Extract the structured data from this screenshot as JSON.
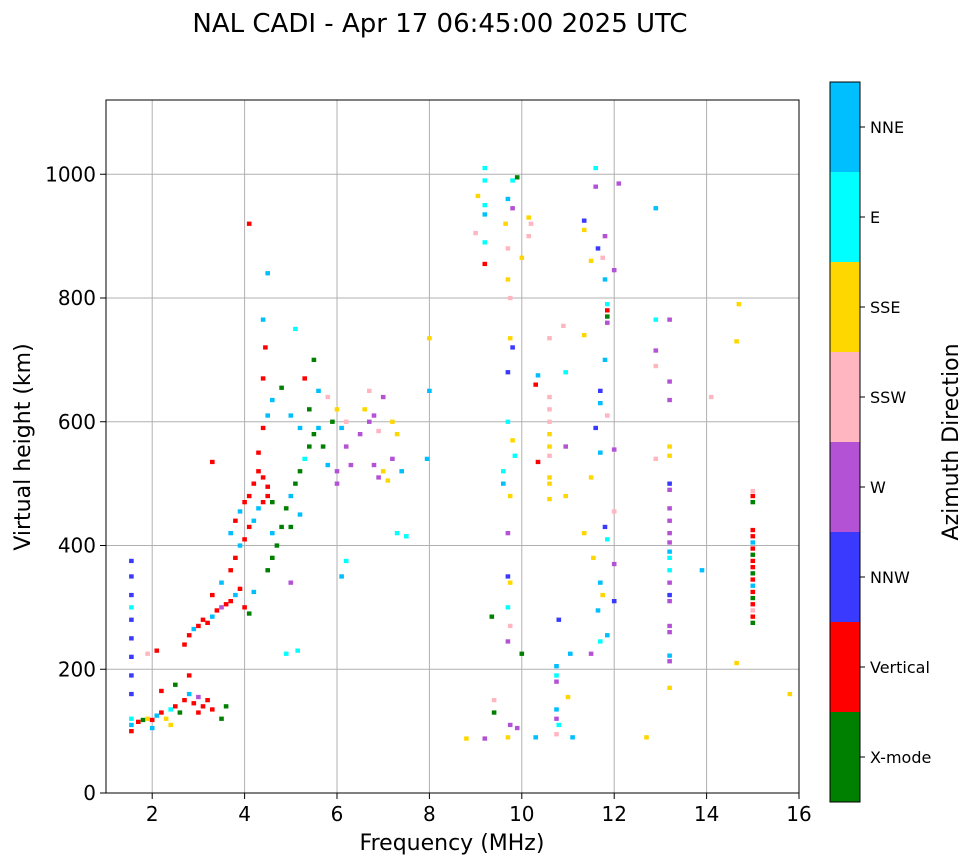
{
  "chart_data": {
    "type": "scatter",
    "title": "NAL CADI - Apr 17 06:45:00 2025 UTC",
    "xlabel": "Frequency (MHz)",
    "ylabel": "Virtual height (km)",
    "xlim": [
      1,
      16
    ],
    "ylim": [
      0,
      1120
    ],
    "xticks": [
      2,
      4,
      6,
      8,
      10,
      12,
      14,
      16
    ],
    "yticks": [
      0,
      200,
      400,
      600,
      800,
      1000
    ],
    "grid": true,
    "colorbar": {
      "label": "Azimuth Direction",
      "categories": [
        {
          "name": "X-mode",
          "color": "#008000"
        },
        {
          "name": "Vertical",
          "color": "#ff0000"
        },
        {
          "name": "NNW",
          "color": "#3a3aff"
        },
        {
          "name": "W",
          "color": "#b452d6"
        },
        {
          "name": "SSW",
          "color": "#ffb6c1"
        },
        {
          "name": "SSE",
          "color": "#ffd700"
        },
        {
          "name": "E",
          "color": "#00ffff"
        },
        {
          "name": "NNE",
          "color": "#00bfff"
        }
      ]
    },
    "points": [
      [
        1.55,
        100,
        "Vertical"
      ],
      [
        1.55,
        110,
        "NNE"
      ],
      [
        1.55,
        120,
        "E"
      ],
      [
        1.55,
        160,
        "NNW"
      ],
      [
        1.55,
        190,
        "NNW"
      ],
      [
        1.55,
        220,
        "NNW"
      ],
      [
        1.55,
        250,
        "NNW"
      ],
      [
        1.55,
        280,
        "NNW"
      ],
      [
        1.55,
        300,
        "E"
      ],
      [
        1.55,
        320,
        "NNW"
      ],
      [
        1.55,
        350,
        "NNW"
      ],
      [
        1.55,
        375,
        "NNW"
      ],
      [
        1.7,
        115,
        "Vertical"
      ],
      [
        1.8,
        118,
        "X-mode"
      ],
      [
        1.9,
        120,
        "SSE"
      ],
      [
        2.0,
        118,
        "Vertical"
      ],
      [
        2.1,
        125,
        "NNE"
      ],
      [
        2.2,
        130,
        "Vertical"
      ],
      [
        2.3,
        120,
        "SSE"
      ],
      [
        2.4,
        135,
        "E"
      ],
      [
        2.5,
        140,
        "Vertical"
      ],
      [
        2.6,
        130,
        "X-mode"
      ],
      [
        2.7,
        150,
        "Vertical"
      ],
      [
        2.8,
        160,
        "NNE"
      ],
      [
        2.9,
        145,
        "Vertical"
      ],
      [
        3.0,
        155,
        "W"
      ],
      [
        3.1,
        140,
        "Vertical"
      ],
      [
        3.2,
        150,
        "Vertical"
      ],
      [
        2.2,
        165,
        "Vertical"
      ],
      [
        2.5,
        175,
        "X-mode"
      ],
      [
        2.8,
        190,
        "Vertical"
      ],
      [
        3.0,
        130,
        "Vertical"
      ],
      [
        3.3,
        135,
        "Vertical"
      ],
      [
        3.5,
        120,
        "X-mode"
      ],
      [
        3.6,
        140,
        "X-mode"
      ],
      [
        2.4,
        110,
        "SSE"
      ],
      [
        2.0,
        105,
        "NNE"
      ],
      [
        1.9,
        225,
        "SSW"
      ],
      [
        2.1,
        230,
        "Vertical"
      ],
      [
        2.7,
        240,
        "Vertical"
      ],
      [
        2.8,
        255,
        "Vertical"
      ],
      [
        2.9,
        265,
        "NNE"
      ],
      [
        3.0,
        270,
        "Vertical"
      ],
      [
        3.1,
        280,
        "Vertical"
      ],
      [
        3.2,
        275,
        "Vertical"
      ],
      [
        3.3,
        285,
        "NNE"
      ],
      [
        3.4,
        295,
        "Vertical"
      ],
      [
        3.5,
        300,
        "W"
      ],
      [
        3.6,
        305,
        "Vertical"
      ],
      [
        3.7,
        310,
        "Vertical"
      ],
      [
        3.8,
        320,
        "NNE"
      ],
      [
        3.9,
        330,
        "Vertical"
      ],
      [
        4.0,
        300,
        "Vertical"
      ],
      [
        4.1,
        290,
        "X-mode"
      ],
      [
        4.2,
        325,
        "NNE"
      ],
      [
        3.3,
        320,
        "Vertical"
      ],
      [
        3.5,
        340,
        "NNE"
      ],
      [
        3.7,
        360,
        "Vertical"
      ],
      [
        3.8,
        380,
        "Vertical"
      ],
      [
        3.9,
        400,
        "NNE"
      ],
      [
        4.0,
        410,
        "Vertical"
      ],
      [
        4.1,
        430,
        "Vertical"
      ],
      [
        3.7,
        420,
        "NNE"
      ],
      [
        3.8,
        440,
        "Vertical"
      ],
      [
        3.9,
        455,
        "NNE"
      ],
      [
        4.0,
        470,
        "Vertical"
      ],
      [
        4.1,
        480,
        "Vertical"
      ],
      [
        4.2,
        500,
        "Vertical"
      ],
      [
        4.3,
        520,
        "Vertical"
      ],
      [
        4.4,
        510,
        "Vertical"
      ],
      [
        4.5,
        495,
        "Vertical"
      ],
      [
        4.3,
        460,
        "NNE"
      ],
      [
        4.4,
        470,
        "Vertical"
      ],
      [
        4.5,
        480,
        "Vertical"
      ],
      [
        4.6,
        470,
        "X-mode"
      ],
      [
        4.2,
        440,
        "NNE"
      ],
      [
        4.3,
        550,
        "Vertical"
      ],
      [
        4.4,
        590,
        "Vertical"
      ],
      [
        4.5,
        610,
        "NNE"
      ],
      [
        4.6,
        635,
        "NNE"
      ],
      [
        4.4,
        670,
        "Vertical"
      ],
      [
        4.45,
        720,
        "Vertical"
      ],
      [
        4.4,
        765,
        "NNE"
      ],
      [
        4.5,
        840,
        "NNE"
      ],
      [
        4.1,
        920,
        "Vertical"
      ],
      [
        3.3,
        535,
        "Vertical"
      ],
      [
        4.6,
        380,
        "X-mode"
      ],
      [
        4.7,
        400,
        "X-mode"
      ],
      [
        4.6,
        420,
        "NNE"
      ],
      [
        4.5,
        360,
        "X-mode"
      ],
      [
        4.8,
        430,
        "X-mode"
      ],
      [
        4.9,
        460,
        "X-mode"
      ],
      [
        5.0,
        480,
        "NNE"
      ],
      [
        5.1,
        500,
        "X-mode"
      ],
      [
        5.2,
        520,
        "X-mode"
      ],
      [
        5.3,
        540,
        "E"
      ],
      [
        5.4,
        560,
        "X-mode"
      ],
      [
        5.5,
        580,
        "X-mode"
      ],
      [
        5.6,
        590,
        "NNE"
      ],
      [
        5.7,
        560,
        "X-mode"
      ],
      [
        5.8,
        530,
        "NNE"
      ],
      [
        5.9,
        600,
        "X-mode"
      ],
      [
        5.0,
        430,
        "X-mode"
      ],
      [
        5.2,
        450,
        "NNE"
      ],
      [
        5.4,
        620,
        "X-mode"
      ],
      [
        5.6,
        650,
        "NNE"
      ],
      [
        5.8,
        640,
        "SSW"
      ],
      [
        5.0,
        340,
        "W"
      ],
      [
        4.9,
        225,
        "E"
      ],
      [
        5.15,
        230,
        "E"
      ],
      [
        5.2,
        590,
        "NNE"
      ],
      [
        5.3,
        670,
        "Vertical"
      ],
      [
        5.5,
        700,
        "X-mode"
      ],
      [
        5.1,
        750,
        "E"
      ],
      [
        4.8,
        655,
        "X-mode"
      ],
      [
        5.0,
        610,
        "NNE"
      ],
      [
        6.1,
        590,
        "NNE"
      ],
      [
        6.2,
        560,
        "W"
      ],
      [
        6.3,
        530,
        "W"
      ],
      [
        6.0,
        520,
        "W"
      ],
      [
        6.0,
        500,
        "W"
      ],
      [
        6.2,
        600,
        "SSW"
      ],
      [
        6.5,
        580,
        "W"
      ],
      [
        6.6,
        620,
        "SSE"
      ],
      [
        6.7,
        600,
        "W"
      ],
      [
        6.8,
        610,
        "W"
      ],
      [
        6.9,
        585,
        "SSW"
      ],
      [
        6.8,
        530,
        "W"
      ],
      [
        7.0,
        520,
        "SSE"
      ],
      [
        7.1,
        505,
        "SSE"
      ],
      [
        7.2,
        540,
        "W"
      ],
      [
        7.3,
        580,
        "SSE"
      ],
      [
        7.4,
        520,
        "NNE"
      ],
      [
        6.9,
        510,
        "W"
      ],
      [
        6.7,
        650,
        "SSW"
      ],
      [
        7.0,
        640,
        "W"
      ],
      [
        7.2,
        600,
        "SSE"
      ],
      [
        6.1,
        350,
        "NNE"
      ],
      [
        6.2,
        375,
        "E"
      ],
      [
        7.3,
        420,
        "E"
      ],
      [
        7.5,
        415,
        "E"
      ],
      [
        6.0,
        620,
        "SSE"
      ],
      [
        8.0,
        735,
        "SSE"
      ],
      [
        8.0,
        650,
        "NNE"
      ],
      [
        7.95,
        540,
        "NNE"
      ],
      [
        9.2,
        1010,
        "E"
      ],
      [
        9.2,
        990,
        "E"
      ],
      [
        9.2,
        950,
        "E"
      ],
      [
        9.2,
        935,
        "NNE"
      ],
      [
        9.05,
        965,
        "SSE"
      ],
      [
        9.2,
        890,
        "E"
      ],
      [
        9.0,
        905,
        "SSW"
      ],
      [
        9.2,
        855,
        "Vertical"
      ],
      [
        8.8,
        88,
        "SSE"
      ],
      [
        9.2,
        88,
        "W"
      ],
      [
        9.4,
        150,
        "SSW"
      ],
      [
        9.4,
        130,
        "X-mode"
      ],
      [
        9.35,
        285,
        "X-mode"
      ],
      [
        9.7,
        960,
        "NNE"
      ],
      [
        9.65,
        920,
        "SSE"
      ],
      [
        9.7,
        880,
        "SSW"
      ],
      [
        9.8,
        990,
        "E"
      ],
      [
        9.9,
        995,
        "X-mode"
      ],
      [
        9.8,
        945,
        "W"
      ],
      [
        9.7,
        830,
        "SSE"
      ],
      [
        9.75,
        800,
        "SSW"
      ],
      [
        9.8,
        720,
        "NNW"
      ],
      [
        9.75,
        735,
        "SSE"
      ],
      [
        9.7,
        680,
        "NNW"
      ],
      [
        9.7,
        600,
        "E"
      ],
      [
        9.8,
        570,
        "SSE"
      ],
      [
        9.85,
        545,
        "E"
      ],
      [
        9.6,
        520,
        "E"
      ],
      [
        9.75,
        480,
        "SSE"
      ],
      [
        9.7,
        420,
        "W"
      ],
      [
        9.7,
        350,
        "NNW"
      ],
      [
        9.75,
        340,
        "SSE"
      ],
      [
        9.7,
        300,
        "E"
      ],
      [
        9.75,
        270,
        "SSW"
      ],
      [
        9.7,
        245,
        "W"
      ],
      [
        9.75,
        110,
        "W"
      ],
      [
        9.7,
        90,
        "SSE"
      ],
      [
        9.6,
        500,
        "NNE"
      ],
      [
        10.15,
        930,
        "SSE"
      ],
      [
        10.2,
        920,
        "SSW"
      ],
      [
        10.15,
        900,
        "SSW"
      ],
      [
        10.0,
        865,
        "SSE"
      ],
      [
        10.35,
        675,
        "NNE"
      ],
      [
        10.3,
        660,
        "Vertical"
      ],
      [
        10.35,
        535,
        "Vertical"
      ],
      [
        10.0,
        225,
        "X-mode"
      ],
      [
        10.3,
        90,
        "NNE"
      ],
      [
        9.9,
        105,
        "W"
      ],
      [
        10.6,
        640,
        "SSW"
      ],
      [
        10.6,
        620,
        "SSW"
      ],
      [
        10.6,
        600,
        "SSW"
      ],
      [
        10.6,
        580,
        "SSE"
      ],
      [
        10.6,
        560,
        "SSE"
      ],
      [
        10.6,
        545,
        "SSW"
      ],
      [
        10.6,
        510,
        "SSE"
      ],
      [
        10.6,
        500,
        "SSE"
      ],
      [
        10.6,
        475,
        "SSE"
      ],
      [
        10.6,
        735,
        "SSW"
      ],
      [
        10.75,
        205,
        "NNE"
      ],
      [
        10.75,
        190,
        "E"
      ],
      [
        10.75,
        180,
        "W"
      ],
      [
        10.75,
        135,
        "NNE"
      ],
      [
        10.75,
        120,
        "W"
      ],
      [
        10.8,
        110,
        "E"
      ],
      [
        10.75,
        95,
        "SSW"
      ],
      [
        10.8,
        280,
        "NNW"
      ],
      [
        10.9,
        755,
        "SSW"
      ],
      [
        10.95,
        680,
        "E"
      ],
      [
        10.95,
        560,
        "W"
      ],
      [
        10.95,
        480,
        "SSE"
      ],
      [
        11.0,
        155,
        "SSE"
      ],
      [
        11.1,
        90,
        "NNE"
      ],
      [
        11.05,
        225,
        "NNE"
      ],
      [
        11.35,
        925,
        "NNW"
      ],
      [
        11.35,
        910,
        "SSE"
      ],
      [
        11.35,
        740,
        "SSE"
      ],
      [
        11.35,
        420,
        "SSE"
      ],
      [
        11.6,
        980,
        "W"
      ],
      [
        11.6,
        1010,
        "E"
      ],
      [
        11.65,
        880,
        "NNW"
      ],
      [
        11.8,
        900,
        "W"
      ],
      [
        11.75,
        865,
        "SSW"
      ],
      [
        11.5,
        860,
        "SSE"
      ],
      [
        11.8,
        830,
        "NNE"
      ],
      [
        11.85,
        780,
        "Vertical"
      ],
      [
        11.85,
        770,
        "X-mode"
      ],
      [
        11.85,
        790,
        "E"
      ],
      [
        11.85,
        760,
        "W"
      ],
      [
        11.8,
        700,
        "NNE"
      ],
      [
        11.7,
        650,
        "NNW"
      ],
      [
        11.7,
        630,
        "NNE"
      ],
      [
        11.85,
        610,
        "SSW"
      ],
      [
        11.6,
        590,
        "NNW"
      ],
      [
        11.7,
        550,
        "NNE"
      ],
      [
        11.5,
        510,
        "SSE"
      ],
      [
        11.8,
        430,
        "NNW"
      ],
      [
        11.85,
        410,
        "E"
      ],
      [
        11.55,
        380,
        "SSE"
      ],
      [
        11.7,
        340,
        "NNE"
      ],
      [
        11.75,
        320,
        "SSE"
      ],
      [
        11.65,
        295,
        "NNE"
      ],
      [
        11.85,
        255,
        "NNE"
      ],
      [
        11.7,
        245,
        "E"
      ],
      [
        11.5,
        225,
        "W"
      ],
      [
        12.0,
        845,
        "W"
      ],
      [
        12.0,
        555,
        "W"
      ],
      [
        12.0,
        455,
        "SSW"
      ],
      [
        12.0,
        370,
        "W"
      ],
      [
        12.0,
        310,
        "NNW"
      ],
      [
        12.1,
        985,
        "W"
      ],
      [
        12.9,
        945,
        "NNE"
      ],
      [
        12.9,
        765,
        "E"
      ],
      [
        12.9,
        715,
        "W"
      ],
      [
        12.9,
        690,
        "SSW"
      ],
      [
        12.9,
        540,
        "SSW"
      ],
      [
        13.2,
        765,
        "W"
      ],
      [
        13.2,
        665,
        "W"
      ],
      [
        13.2,
        635,
        "W"
      ],
      [
        13.2,
        560,
        "SSE"
      ],
      [
        13.2,
        545,
        "SSE"
      ],
      [
        13.2,
        500,
        "NNW"
      ],
      [
        13.2,
        490,
        "W"
      ],
      [
        13.2,
        460,
        "W"
      ],
      [
        13.2,
        440,
        "W"
      ],
      [
        13.2,
        420,
        "W"
      ],
      [
        13.2,
        405,
        "W"
      ],
      [
        13.2,
        390,
        "NNE"
      ],
      [
        13.2,
        380,
        "E"
      ],
      [
        13.2,
        360,
        "E"
      ],
      [
        13.2,
        340,
        "W"
      ],
      [
        13.2,
        320,
        "NNW"
      ],
      [
        13.2,
        310,
        "W"
      ],
      [
        13.2,
        270,
        "W"
      ],
      [
        13.2,
        260,
        "W"
      ],
      [
        13.2,
        222,
        "NNE"
      ],
      [
        13.2,
        213,
        "W"
      ],
      [
        13.2,
        170,
        "SSE"
      ],
      [
        12.7,
        90,
        "SSE"
      ],
      [
        13.9,
        360,
        "NNE"
      ],
      [
        14.1,
        640,
        "SSW"
      ],
      [
        14.7,
        790,
        "SSE"
      ],
      [
        14.65,
        730,
        "SSE"
      ],
      [
        14.65,
        210,
        "SSE"
      ],
      [
        15.0,
        488,
        "SSW"
      ],
      [
        15.0,
        480,
        "Vertical"
      ],
      [
        15.0,
        470,
        "X-mode"
      ],
      [
        15.0,
        425,
        "Vertical"
      ],
      [
        15.0,
        415,
        "Vertical"
      ],
      [
        15.0,
        405,
        "NNE"
      ],
      [
        15.0,
        395,
        "Vertical"
      ],
      [
        15.0,
        385,
        "X-mode"
      ],
      [
        15.0,
        375,
        "Vertical"
      ],
      [
        15.0,
        365,
        "Vertical"
      ],
      [
        15.0,
        355,
        "X-mode"
      ],
      [
        15.0,
        345,
        "Vertical"
      ],
      [
        15.0,
        335,
        "NNE"
      ],
      [
        15.0,
        325,
        "Vertical"
      ],
      [
        15.0,
        315,
        "X-mode"
      ],
      [
        15.0,
        305,
        "Vertical"
      ],
      [
        15.0,
        295,
        "SSW"
      ],
      [
        15.0,
        285,
        "Vertical"
      ],
      [
        15.0,
        275,
        "X-mode"
      ],
      [
        15.8,
        160,
        "SSE"
      ]
    ]
  }
}
